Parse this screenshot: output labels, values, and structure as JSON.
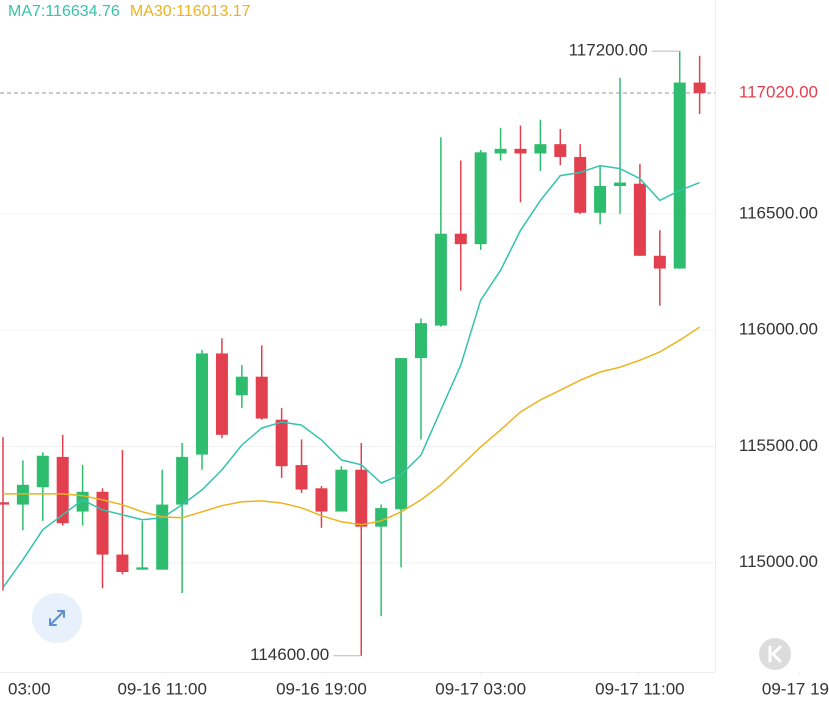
{
  "chart_data": {
    "type": "candlestick",
    "up_color": "#2ebd6e",
    "down_color": "#e2404e",
    "open": [
      115260,
      115250,
      115325,
      115455,
      115220,
      115305,
      115035,
      114970,
      114970,
      115250,
      115465,
      115900,
      115720,
      115800,
      115615,
      115420,
      115320,
      115220,
      115400,
      115155,
      115230,
      115880,
      116020,
      116415,
      116370,
      116760,
      116780,
      116760,
      116800,
      116745,
      116505,
      116620,
      116630,
      116320,
      116265,
      117065
    ],
    "high": [
      115540,
      115440,
      115475,
      115550,
      115420,
      115320,
      115485,
      115180,
      115400,
      115515,
      115915,
      115965,
      115850,
      115935,
      115665,
      115530,
      115330,
      115415,
      115515,
      115250,
      115880,
      116050,
      116830,
      116730,
      116775,
      116870,
      116880,
      116905,
      116865,
      116800,
      116705,
      117085,
      116715,
      116430,
      117200,
      117180
    ],
    "low": [
      114880,
      115140,
      115180,
      115160,
      115160,
      114890,
      114950,
      114970,
      114970,
      114870,
      115400,
      115535,
      115665,
      115615,
      115365,
      115300,
      115150,
      115220,
      114600,
      114770,
      114980,
      115530,
      116015,
      116170,
      116345,
      116730,
      116550,
      116685,
      116710,
      116500,
      116455,
      116500,
      116320,
      116105,
      116265,
      116930
    ],
    "close": [
      115250,
      115335,
      115460,
      115170,
      115305,
      115035,
      114960,
      114980,
      115250,
      115455,
      115900,
      115550,
      115800,
      115620,
      115415,
      115315,
      115220,
      115400,
      115155,
      115235,
      115880,
      116030,
      116415,
      116370,
      116765,
      116780,
      116760,
      116800,
      116745,
      116505,
      116620,
      116635,
      116320,
      116265,
      117065,
      117020
    ],
    "series": [
      {
        "name": "MA7:116634.76",
        "color": "#35c3ad",
        "values": [
          114893,
          115013,
          115142,
          115206,
          115270,
          115227,
          115206,
          115185,
          115193,
          115249,
          115313,
          115399,
          115506,
          115579,
          115605,
          115592,
          115528,
          115442,
          115421,
          115343,
          115378,
          115463,
          115657,
          115850,
          116129,
          116258,
          116429,
          116558,
          116665,
          116678,
          116708,
          116695,
          116652,
          116558,
          116601,
          116634.76
        ]
      },
      {
        "name": "MA30:116013.17",
        "color": "#ebb31f",
        "values": [
          115296,
          115296,
          115296,
          115296,
          115288,
          115270,
          115249,
          115219,
          115197,
          115193,
          115219,
          115245,
          115262,
          115266,
          115257,
          115236,
          115202,
          115176,
          115163,
          115180,
          115219,
          115270,
          115335,
          115416,
          115498,
          115571,
          115648,
          115700,
          115742,
          115785,
          115820,
          115841,
          115871,
          115906,
          115957,
          116013.17
        ]
      }
    ],
    "ylim": [
      114530,
      117420
    ],
    "yticks": [
      {
        "value": 115000,
        "label": "115000.00"
      },
      {
        "value": 115500,
        "label": "115500.00"
      },
      {
        "value": 116000,
        "label": "116000.00"
      },
      {
        "value": 116500,
        "label": "116500.00"
      }
    ],
    "xlim": [
      -0.15,
      41.5
    ],
    "xticks": [
      {
        "value": 0,
        "label": "03:00"
      },
      {
        "value": 8,
        "label": "09-16 11:00"
      },
      {
        "value": 16,
        "label": "09-16 19:00"
      },
      {
        "value": 24,
        "label": "09-17 03:00"
      },
      {
        "value": 32,
        "label": "09-17 11:00"
      },
      {
        "value": 40,
        "label": "09-17 19"
      }
    ],
    "grid": true,
    "max_mark": {
      "index": 34,
      "value": 117200,
      "label": "117200.00"
    },
    "min_mark": {
      "index": 18,
      "value": 114600,
      "label": "114600.00"
    },
    "last_price": {
      "value": 117020,
      "label": "117020.00",
      "color": "#e2404e"
    }
  }
}
